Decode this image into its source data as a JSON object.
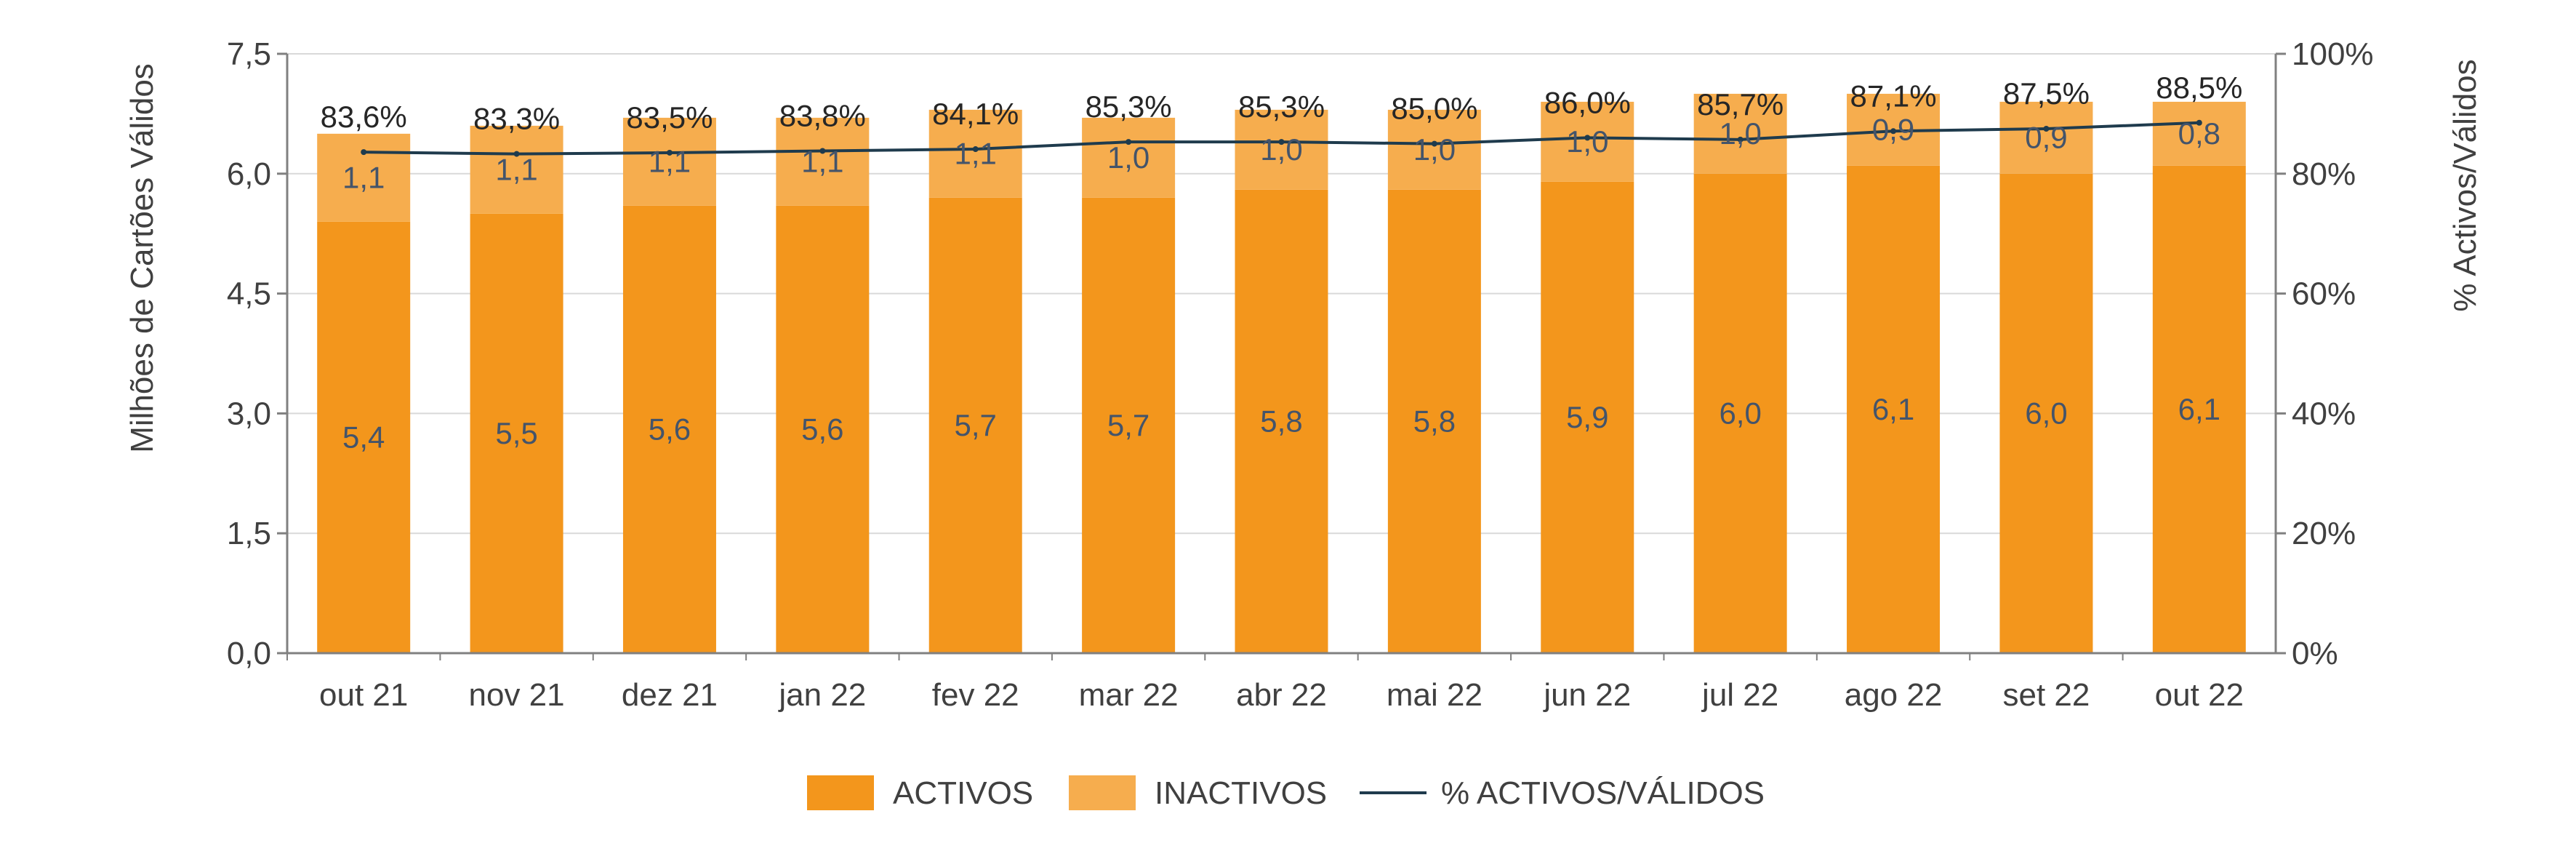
{
  "chart_data": {
    "type": "bar",
    "stacked": true,
    "categories": [
      "out 21",
      "nov 21",
      "dez 21",
      "jan 22",
      "fev 22",
      "mar 22",
      "abr 22",
      "mai 22",
      "jun 22",
      "jul 22",
      "ago 22",
      "set 22",
      "out 22"
    ],
    "series": [
      {
        "name": "ACTIVOS",
        "type": "bar",
        "axis": "left",
        "color": "#f3961c",
        "values": [
          5.4,
          5.5,
          5.6,
          5.6,
          5.7,
          5.7,
          5.8,
          5.8,
          5.9,
          6.0,
          6.1,
          6.0,
          6.1
        ],
        "labels": [
          "5,4",
          "5,5",
          "5,6",
          "5,6",
          "5,7",
          "5,7",
          "5,8",
          "5,8",
          "5,9",
          "6,0",
          "6,1",
          "6,0",
          "6,1"
        ]
      },
      {
        "name": "INACTIVOS",
        "type": "bar",
        "axis": "left",
        "color": "#f6ad4e",
        "values": [
          1.1,
          1.1,
          1.1,
          1.1,
          1.1,
          1.0,
          1.0,
          1.0,
          1.0,
          1.0,
          0.9,
          0.9,
          0.8
        ],
        "labels": [
          "1,1",
          "1,1",
          "1,1",
          "1,1",
          "1,1",
          "1,0",
          "1,0",
          "1,0",
          "1,0",
          "1,0",
          "0,9",
          "0,9",
          "0,8"
        ]
      },
      {
        "name": "% ACTIVOS/VÁLIDOS",
        "type": "line",
        "axis": "right",
        "color": "#1f3b4d",
        "values": [
          83.6,
          83.3,
          83.5,
          83.8,
          84.1,
          85.3,
          85.3,
          85.0,
          86.0,
          85.7,
          87.1,
          87.5,
          88.5
        ],
        "labels": [
          "83,6%",
          "83,3%",
          "83,5%",
          "83,8%",
          "84,1%",
          "85,3%",
          "85,3%",
          "85,0%",
          "86,0%",
          "85,7%",
          "87,1%",
          "87,5%",
          "88,5%"
        ]
      }
    ],
    "ylabel": "Milhões de Cartões Válidos",
    "ylim": [
      0,
      7.5
    ],
    "yticks": [
      "0,0",
      "1,5",
      "3,0",
      "4,5",
      "6,0",
      "7,5"
    ],
    "y2label": "% Activos/Válidos",
    "y2lim": [
      0,
      100
    ],
    "y2ticks": [
      "0%",
      "20%",
      "40%",
      "60%",
      "80%",
      "100%"
    ],
    "grid": true,
    "legend": "bottom-center"
  }
}
